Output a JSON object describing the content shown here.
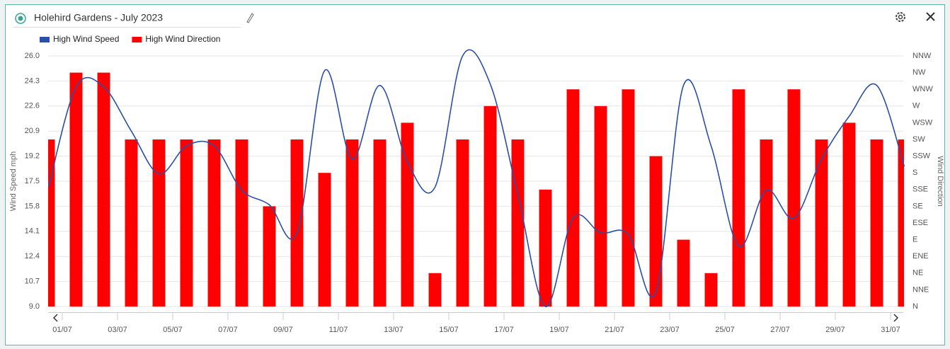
{
  "chart_data": {
    "type": "combo",
    "title": "Holehird Gardens - July 2023",
    "y_label": "Wind Speed mph",
    "y2_label": "Wind Direction",
    "x": [
      0.5,
      1.5,
      2.5,
      3.5,
      4.5,
      5.5,
      6.5,
      7.5,
      8.5,
      9.5,
      10.5,
      11.5,
      12.5,
      13.5,
      14.5,
      15.5,
      16.5,
      17.5,
      18.5,
      19.5,
      20.5,
      21.5,
      22.5,
      23.5,
      24.5,
      25.5,
      26.5,
      27.5,
      28.5,
      29.5,
      30.5,
      31.5
    ],
    "xlim": [
      0.5,
      31.5
    ],
    "xticks": [
      {
        "value": 1,
        "label": "01/07"
      },
      {
        "value": 3,
        "label": "03/07"
      },
      {
        "value": 5,
        "label": "05/07"
      },
      {
        "value": 7,
        "label": "07/07"
      },
      {
        "value": 9,
        "label": "09/07"
      },
      {
        "value": 11,
        "label": "11/07"
      },
      {
        "value": 13,
        "label": "13/07"
      },
      {
        "value": 15,
        "label": "15/07"
      },
      {
        "value": 17,
        "label": "17/07"
      },
      {
        "value": 19,
        "label": "19/07"
      },
      {
        "value": 21,
        "label": "21/07"
      },
      {
        "value": 23,
        "label": "23/07"
      },
      {
        "value": 25,
        "label": "25/07"
      },
      {
        "value": 27,
        "label": "27/07"
      },
      {
        "value": 29,
        "label": "29/07"
      },
      {
        "value": 31,
        "label": "31/07"
      }
    ],
    "ylim": [
      9,
      26
    ],
    "yticks": [
      {
        "value": 9,
        "label": "9.0"
      },
      10.7,
      12.4,
      14.1,
      15.8,
      17.5,
      19.2,
      20.9,
      22.6,
      24.3,
      {
        "value": 26,
        "label": "26.0"
      }
    ],
    "y2lim": [
      0,
      15
    ],
    "y2ticks": [
      {
        "value": 0,
        "label": "N"
      },
      {
        "value": 1,
        "label": "NNE"
      },
      {
        "value": 2,
        "label": "NE"
      },
      {
        "value": 3,
        "label": "ENE"
      },
      {
        "value": 4,
        "label": "E"
      },
      {
        "value": 5,
        "label": "ESE"
      },
      {
        "value": 6,
        "label": "SE"
      },
      {
        "value": 7,
        "label": "SSE"
      },
      {
        "value": 8,
        "label": "S"
      },
      {
        "value": 9,
        "label": "SSW"
      },
      {
        "value": 10,
        "label": "SW"
      },
      {
        "value": 11,
        "label": "WSW"
      },
      {
        "value": 12,
        "label": "W"
      },
      {
        "value": 13,
        "label": "WNW"
      },
      {
        "value": 14,
        "label": "NW"
      },
      {
        "value": 15,
        "label": "NNW"
      }
    ],
    "grid": true,
    "series": [
      {
        "name": "High Wind Direction",
        "type": "bar",
        "axis": "y2",
        "color": "#ff0000",
        "values": [
          10,
          14,
          14,
          10,
          10,
          10,
          10,
          10,
          6,
          10,
          8,
          10,
          10,
          11,
          2,
          10,
          12,
          10,
          7,
          13,
          12,
          13,
          9,
          4,
          2,
          13,
          10,
          13,
          10,
          11,
          10,
          10
        ]
      },
      {
        "name": "High Wind Speed",
        "type": "line",
        "color": "#2a4fa8",
        "values": [
          17.1,
          23.9,
          23.9,
          20.9,
          18.0,
          19.9,
          19.9,
          16.9,
          15.9,
          14.0,
          25.0,
          19.0,
          24.0,
          18.8,
          17.1,
          26.0,
          24.1,
          16.6,
          9.0,
          15.0,
          14.0,
          13.9,
          10.0,
          24.0,
          19.9,
          13.1,
          16.9,
          15.0,
          19.0,
          21.9,
          24.0,
          18.5
        ]
      }
    ]
  }
}
